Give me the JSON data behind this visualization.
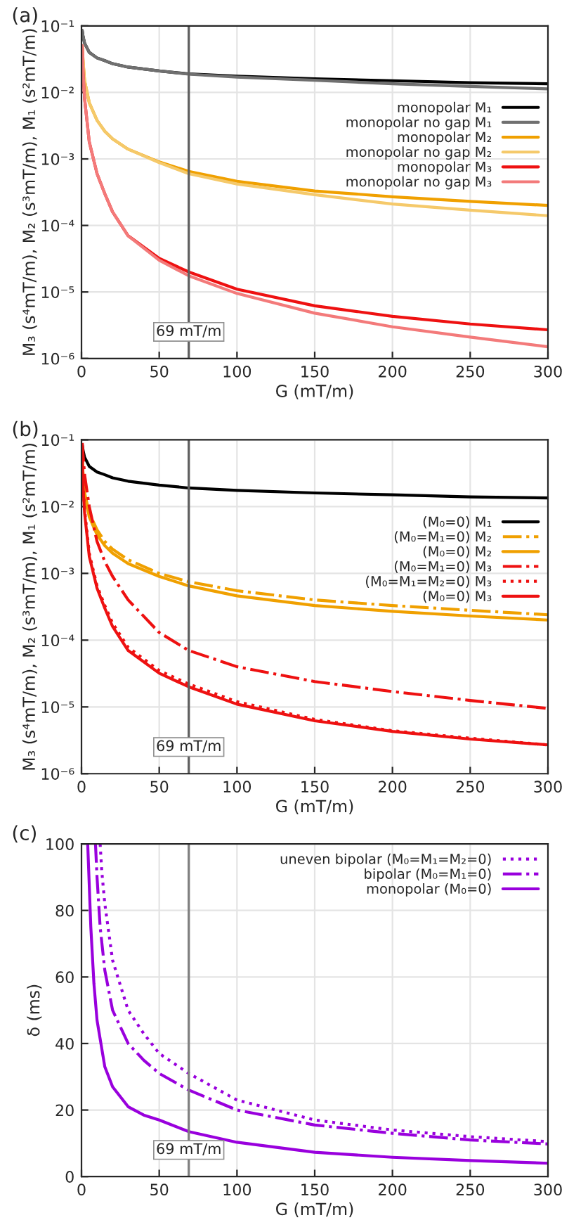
{
  "chart_data": [
    {
      "type": "line",
      "title": "(a)",
      "xlabel": "G (mT/m)",
      "ylabel": "M₃ (s⁴mT/m), M₂ (s³mT/m), M₁ (s²mT/m)",
      "log": "y",
      "grid": true,
      "legend": "right",
      "line_style": "solid",
      "x": [
        0.5,
        1,
        2,
        5,
        10,
        15,
        20,
        30,
        50,
        69,
        100,
        150,
        200,
        250,
        300
      ],
      "xlim": [
        0,
        300
      ],
      "xticks": [
        0,
        50,
        100,
        150,
        200,
        250,
        300
      ],
      "ylim": [
        1e-06,
        0.1
      ],
      "yticks": [
        {
          "value": 1e-06,
          "label": "10⁻⁶"
        },
        {
          "value": 1e-05,
          "label": "10⁻⁵"
        },
        {
          "value": 0.0001,
          "label": "10⁻⁴"
        },
        {
          "value": 0.001,
          "label": "10⁻³"
        },
        {
          "value": 0.01,
          "label": "10⁻²"
        },
        {
          "value": 0.1,
          "label": "10⁻¹"
        }
      ],
      "ref_lines": [
        {
          "axis": "x",
          "value": 69,
          "label": "69 mT/m",
          "color": "#606060"
        }
      ],
      "series": [
        {
          "name": "monopolar M₁",
          "color": "#000000",
          "values": [
            0.085,
            0.07,
            0.055,
            0.04,
            0.033,
            0.03,
            0.027,
            0.024,
            0.021,
            0.019,
            0.0175,
            0.016,
            0.015,
            0.014,
            0.0135
          ]
        },
        {
          "name": "monopolar no gap M₁",
          "color": "#707070",
          "values": [
            0.085,
            0.07,
            0.055,
            0.04,
            0.033,
            0.03,
            0.027,
            0.024,
            0.021,
            0.0188,
            0.017,
            0.0152,
            0.0135,
            0.0123,
            0.0113
          ]
        },
        {
          "name": "monopolar M₂",
          "color": "#f0a000",
          "values": [
            0.05,
            0.03,
            0.015,
            0.007,
            0.0038,
            0.0026,
            0.002,
            0.0014,
            0.0009,
            0.00065,
            0.00046,
            0.00033,
            0.00027,
            0.00023,
            0.0002
          ]
        },
        {
          "name": "monopolar no gap M₂",
          "color": "#f5c96a",
          "values": [
            0.05,
            0.03,
            0.015,
            0.007,
            0.0038,
            0.0026,
            0.002,
            0.0014,
            0.00088,
            0.0006,
            0.00042,
            0.00029,
            0.00021,
            0.00017,
            0.00014
          ]
        },
        {
          "name": "monopolar M₃",
          "color": "#ee1111",
          "values": [
            0.05,
            0.02,
            0.008,
            0.0018,
            0.0006,
            0.0003,
            0.00016,
            7e-05,
            3.2e-05,
            2e-05,
            1.1e-05,
            6.2e-06,
            4.3e-06,
            3.3e-06,
            2.7e-06
          ]
        },
        {
          "name": "monopolar no gap M₃",
          "color": "#f37a7a",
          "values": [
            0.05,
            0.02,
            0.008,
            0.0018,
            0.0006,
            0.0003,
            0.00016,
            7e-05,
            3e-05,
            1.75e-05,
            9.5e-06,
            4.8e-06,
            3e-06,
            2.1e-06,
            1.5e-06
          ]
        }
      ]
    },
    {
      "type": "line",
      "title": "(b)",
      "xlabel": "G (mT/m)",
      "ylabel": "M₃ (s⁴mT/m), M₂ (s³mT/m), M₁ (s²mT/m)",
      "log": "y",
      "grid": true,
      "legend": "right",
      "x": [
        0.5,
        1,
        2,
        5,
        10,
        15,
        20,
        30,
        50,
        69,
        100,
        150,
        200,
        250,
        300
      ],
      "xlim": [
        0,
        300
      ],
      "xticks": [
        0,
        50,
        100,
        150,
        200,
        250,
        300
      ],
      "ylim": [
        1e-06,
        0.1
      ],
      "yticks": [
        {
          "value": 1e-06,
          "label": "10⁻⁶"
        },
        {
          "value": 1e-05,
          "label": "10⁻⁵"
        },
        {
          "value": 0.0001,
          "label": "10⁻⁴"
        },
        {
          "value": 0.001,
          "label": "10⁻³"
        },
        {
          "value": 0.01,
          "label": "10⁻²"
        },
        {
          "value": 0.1,
          "label": "10⁻¹"
        }
      ],
      "ref_lines": [
        {
          "axis": "x",
          "value": 69,
          "label": "69 mT/m",
          "color": "#606060"
        }
      ],
      "series": [
        {
          "name": "(M₀=0) M₁",
          "color": "#000000",
          "line_style": "solid",
          "values": [
            0.085,
            0.07,
            0.055,
            0.04,
            0.033,
            0.03,
            0.027,
            0.024,
            0.021,
            0.019,
            0.0175,
            0.016,
            0.015,
            0.014,
            0.0135
          ]
        },
        {
          "name": "(M₀=M₁=0) M₂",
          "color": "#f0a000",
          "line_style": "dashdot",
          "values": [
            0.05,
            0.03,
            0.016,
            0.008,
            0.0045,
            0.003,
            0.0023,
            0.0016,
            0.001,
            0.00075,
            0.00055,
            0.0004,
            0.00033,
            0.00028,
            0.00024
          ]
        },
        {
          "name": "(M₀=0) M₂",
          "color": "#f0a000",
          "line_style": "solid",
          "values": [
            0.05,
            0.03,
            0.015,
            0.007,
            0.0038,
            0.0026,
            0.002,
            0.0014,
            0.0009,
            0.00065,
            0.00046,
            0.00033,
            0.00027,
            0.00023,
            0.0002
          ]
        },
        {
          "name": "(M₀=M₁=0) M₃",
          "color": "#ee1111",
          "line_style": "dashdot",
          "values": [
            0.09,
            0.06,
            0.03,
            0.01,
            0.003,
            0.0015,
            0.0009,
            0.0004,
            0.00013,
            7e-05,
            4e-05,
            2.4e-05,
            1.7e-05,
            1.25e-05,
            9.5e-06
          ]
        },
        {
          "name": "(M₀=M₁=M₂=0) M₃",
          "color": "#ee1111",
          "line_style": "dotted",
          "values": [
            0.05,
            0.022,
            0.009,
            0.002,
            0.00065,
            0.00033,
            0.00018,
            7.8e-05,
            3.5e-05,
            2.2e-05,
            1.2e-05,
            6.5e-06,
            4.4e-06,
            3.4e-06,
            2.7e-06
          ]
        },
        {
          "name": "(M₀=0) M₃",
          "color": "#ee1111",
          "line_style": "solid",
          "values": [
            0.05,
            0.02,
            0.008,
            0.0018,
            0.0006,
            0.0003,
            0.00016,
            7e-05,
            3.2e-05,
            2e-05,
            1.1e-05,
            6.2e-06,
            4.3e-06,
            3.3e-06,
            2.7e-06
          ]
        }
      ]
    },
    {
      "type": "line",
      "title": "(c)",
      "xlabel": "G (mT/m)",
      "ylabel": "δ (ms)",
      "grid": true,
      "legend": "top right",
      "xlim": [
        0,
        300
      ],
      "xticks": [
        0,
        50,
        100,
        150,
        200,
        250,
        300
      ],
      "ylim": [
        0,
        100
      ],
      "yticks": [
        0,
        20,
        40,
        60,
        80,
        100
      ],
      "ref_lines": [
        {
          "axis": "x",
          "value": 69,
          "label": "69 mT/m",
          "color": "#808080"
        }
      ],
      "series": [
        {
          "name": "uneven bipolar (M₀=M₁=M₂=0)",
          "color": "#9900dd",
          "line_style": "dotted",
          "x": [
            12,
            13,
            15,
            20,
            30,
            40,
            50,
            69,
            100,
            150,
            200,
            250,
            300
          ],
          "values": [
            100,
            92,
            82,
            65,
            50,
            43,
            37,
            31,
            23,
            17,
            14,
            12,
            10.5
          ]
        },
        {
          "name": "bipolar (M₀=M₁=0)",
          "color": "#9900dd",
          "line_style": "dashdot",
          "x": [
            9,
            10,
            12,
            15,
            20,
            30,
            40,
            50,
            69,
            100,
            150,
            200,
            250,
            300
          ],
          "values": [
            100,
            90,
            75,
            62,
            50,
            40,
            35,
            31,
            26,
            20,
            15.5,
            13,
            11,
            9.8
          ]
        },
        {
          "name": "monopolar (M₀=0)",
          "color": "#9900dd",
          "line_style": "solid",
          "x": [
            4,
            6,
            8,
            10,
            15,
            20,
            30,
            40,
            50,
            69,
            100,
            150,
            200,
            250,
            300
          ],
          "values": [
            100,
            75,
            58,
            47,
            33,
            27,
            21,
            18.5,
            17,
            13.5,
            10.3,
            7.3,
            5.8,
            4.8,
            4
          ]
        }
      ]
    }
  ]
}
